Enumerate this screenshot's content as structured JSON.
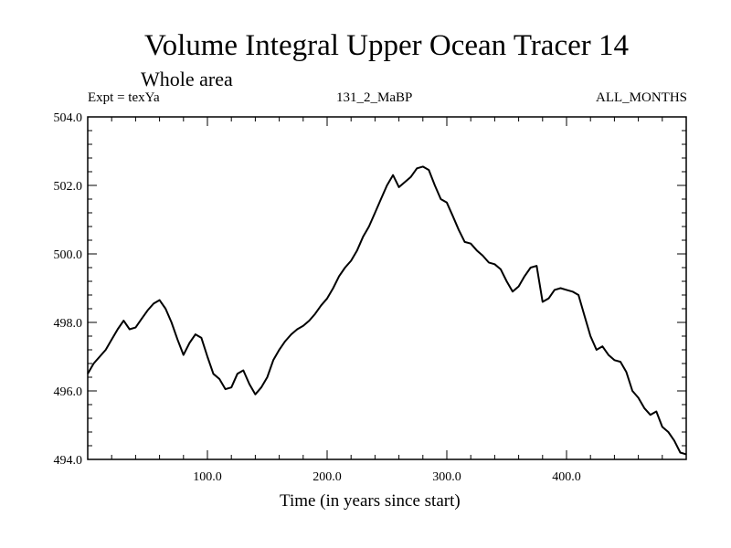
{
  "chart_data": {
    "type": "line",
    "title": "Volume Integral Upper Ocean Tracer 14",
    "subtitle": "Whole area",
    "annotations": {
      "experiment": "Expt = texYa",
      "run": "131_2_MaBP",
      "months": "ALL_MONTHS"
    },
    "xlabel": "Time (in years since start)",
    "ylabel": "",
    "xlim": [
      0,
      500
    ],
    "ylim": [
      494.0,
      504.0
    ],
    "x_ticks": [
      100,
      200,
      300,
      400
    ],
    "x_tick_labels": [
      "100.0",
      "200.0",
      "300.0",
      "400.0"
    ],
    "y_ticks": [
      494,
      496,
      498,
      500,
      502,
      504
    ],
    "y_tick_labels": [
      "494.0",
      "496.0",
      "498.0",
      "500.0",
      "502.0",
      "504.0"
    ],
    "grid": false,
    "series": [
      {
        "color": "#000000",
        "x": [
          0,
          5,
          10,
          15,
          20,
          25,
          30,
          35,
          40,
          45,
          50,
          55,
          60,
          65,
          70,
          75,
          80,
          85,
          90,
          95,
          100,
          105,
          110,
          115,
          120,
          125,
          130,
          135,
          140,
          145,
          150,
          155,
          160,
          165,
          170,
          175,
          180,
          185,
          190,
          195,
          200,
          205,
          210,
          215,
          220,
          225,
          230,
          235,
          240,
          245,
          250,
          255,
          260,
          265,
          270,
          275,
          280,
          285,
          290,
          295,
          300,
          305,
          310,
          315,
          320,
          325,
          330,
          335,
          340,
          345,
          350,
          355,
          360,
          365,
          370,
          375,
          380,
          385,
          390,
          395,
          400,
          405,
          410,
          415,
          420,
          425,
          430,
          435,
          440,
          445,
          450,
          455,
          460,
          465,
          470,
          475,
          480,
          485,
          490,
          495,
          500
        ],
        "values": [
          496.5,
          496.8,
          497.0,
          497.2,
          497.5,
          497.8,
          498.05,
          497.8,
          497.85,
          498.1,
          498.35,
          498.55,
          498.65,
          498.4,
          498.0,
          497.5,
          497.05,
          497.4,
          497.65,
          497.55,
          497.0,
          496.5,
          496.35,
          496.05,
          496.1,
          496.5,
          496.6,
          496.2,
          495.9,
          496.1,
          496.4,
          496.9,
          497.2,
          497.45,
          497.65,
          497.8,
          497.9,
          498.05,
          498.25,
          498.5,
          498.7,
          499.0,
          499.35,
          499.6,
          499.8,
          500.1,
          500.5,
          500.8,
          501.2,
          501.6,
          502.0,
          502.3,
          501.95,
          502.1,
          502.25,
          502.5,
          502.55,
          502.45,
          502.0,
          501.6,
          501.5,
          501.1,
          500.7,
          500.35,
          500.3,
          500.1,
          499.95,
          499.75,
          499.7,
          499.55,
          499.2,
          498.9,
          499.05,
          499.35,
          499.6,
          499.65,
          498.6,
          498.7,
          498.95,
          499.0,
          498.95,
          498.9,
          498.8,
          498.2,
          497.6,
          497.2,
          497.3,
          497.05,
          496.9,
          496.85,
          496.55,
          496.0,
          495.8,
          495.5,
          495.3,
          495.4,
          494.95,
          494.8,
          494.55,
          494.2,
          494.15
        ]
      }
    ]
  }
}
